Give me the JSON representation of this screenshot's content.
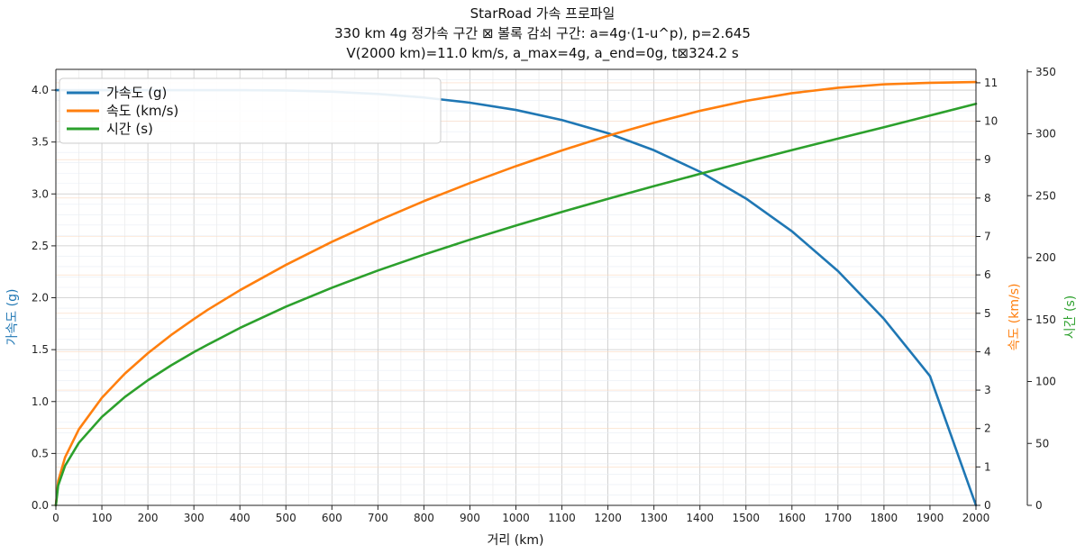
{
  "chart_data": {
    "type": "line",
    "title": [
      "StarRoad 가속 프로파일",
      "330 km 4g 정가속 구간 ⊠ 볼록 감쇠 구간: a=4g·(1-u^p), p=2.645",
      "V(2000 km)=11.0 km/s, a_max=4g, a_end=0g, t⊠324.2 s"
    ],
    "xlabel": "거리 (km)",
    "xlim": [
      0,
      2000
    ],
    "xticks": [
      0,
      100,
      200,
      300,
      400,
      500,
      600,
      700,
      800,
      900,
      1000,
      1100,
      1200,
      1300,
      1400,
      1500,
      1600,
      1700,
      1800,
      1900,
      2000
    ],
    "grid": true,
    "legend_position": "top-left",
    "axes": {
      "left": {
        "label": "가속도 (g)",
        "color": "#1f77b4",
        "lim": [
          0,
          4.2
        ],
        "ticks": [
          0.0,
          0.5,
          1.0,
          1.5,
          2.0,
          2.5,
          3.0,
          3.5,
          4.0
        ],
        "tick_labels": [
          "0.0",
          "0.5",
          "1.0",
          "1.5",
          "2.0",
          "2.5",
          "3.0",
          "3.5",
          "4.0"
        ]
      },
      "right1": {
        "label": "속도 (km/s)",
        "color": "#ff7f0e",
        "lim": [
          0,
          11.35
        ],
        "ticks": [
          0,
          1,
          2,
          3,
          4,
          5,
          6,
          7,
          8,
          9,
          10,
          11
        ],
        "tick_labels": [
          "0",
          "1",
          "2",
          "3",
          "4",
          "5",
          "6",
          "7",
          "8",
          "9",
          "10",
          "11"
        ]
      },
      "right2": {
        "label": "시간 (s)",
        "color": "#2ca02c",
        "lim": [
          0,
          352
        ],
        "ticks": [
          0,
          50,
          100,
          150,
          200,
          250,
          300,
          350
        ],
        "tick_labels": [
          "0",
          "50",
          "100",
          "150",
          "200",
          "250",
          "300",
          "350"
        ]
      }
    },
    "series": [
      {
        "name": "가속도 (g)",
        "axis": "left",
        "color": "#1f77b4",
        "x": [
          0,
          100,
          200,
          300,
          330,
          400,
          500,
          600,
          700,
          800,
          850,
          900,
          1000,
          1100,
          1200,
          1300,
          1400,
          1500,
          1600,
          1700,
          1800,
          1900,
          2000
        ],
        "y": [
          4.0,
          4.0,
          4.0,
          4.0,
          4.0,
          4.0,
          3.997,
          3.985,
          3.963,
          3.929,
          3.904,
          3.879,
          3.809,
          3.712,
          3.585,
          3.421,
          3.214,
          2.956,
          2.64,
          2.257,
          1.796,
          1.246,
          0.0
        ]
      },
      {
        "name": "속도 (km/s)",
        "axis": "right1",
        "color": "#ff7f0e",
        "x": [
          0,
          5,
          20,
          50,
          100,
          150,
          200,
          250,
          300,
          330,
          400,
          500,
          600,
          700,
          800,
          900,
          1000,
          1100,
          1200,
          1300,
          1400,
          1500,
          1600,
          1700,
          1800,
          1900,
          2000
        ],
        "y": [
          0,
          0.63,
          1.25,
          1.98,
          2.8,
          3.43,
          3.96,
          4.43,
          4.85,
          5.09,
          5.6,
          6.26,
          6.86,
          7.41,
          7.92,
          8.39,
          8.83,
          9.24,
          9.62,
          9.96,
          10.27,
          10.53,
          10.73,
          10.87,
          10.96,
          11.0,
          11.02
        ]
      },
      {
        "name": "시간 (s)",
        "axis": "right2",
        "color": "#2ca02c",
        "x": [
          0,
          5,
          20,
          50,
          100,
          150,
          200,
          250,
          300,
          330,
          400,
          500,
          600,
          700,
          800,
          900,
          1000,
          1100,
          1200,
          1300,
          1400,
          1500,
          1600,
          1700,
          1800,
          1900,
          2000
        ],
        "y": [
          0,
          16.0,
          32.0,
          50.5,
          71.4,
          87.5,
          101.0,
          112.9,
          123.7,
          129.7,
          143.2,
          160.4,
          175.7,
          189.6,
          202.4,
          214.5,
          225.9,
          236.9,
          247.5,
          257.7,
          267.6,
          277.3,
          286.8,
          296.1,
          305.3,
          314.7,
          324.2
        ]
      }
    ]
  }
}
